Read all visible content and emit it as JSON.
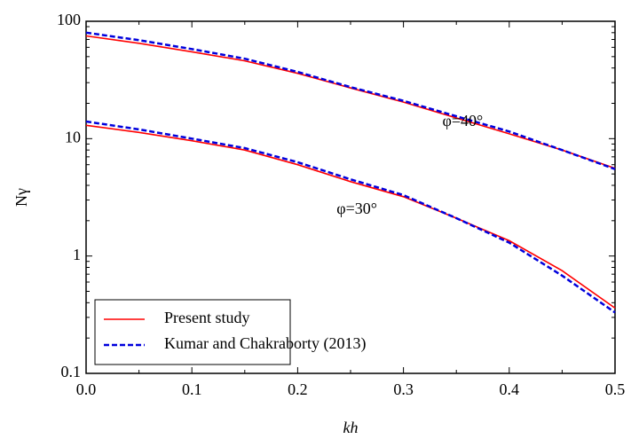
{
  "chart_data": {
    "type": "line",
    "xlabel": "kh",
    "ylabel": "Nγ",
    "x": [
      0,
      0.05,
      0.1,
      0.15,
      0.2,
      0.25,
      0.3,
      0.35,
      0.4,
      0.45,
      0.5
    ],
    "xlim": [
      0,
      0.5
    ],
    "xticks": [
      {
        "value": 0,
        "label": "0.0"
      },
      0.1,
      0.2,
      0.3,
      0.4,
      0.5
    ],
    "ylim": [
      0.1,
      100
    ],
    "yticks": [
      0.1,
      1,
      10,
      100
    ],
    "ylog": true,
    "annotations": [
      "φ=40°",
      "φ=30°"
    ],
    "series": [
      {
        "name": "Present study",
        "color": "#ff0000",
        "dashed": false,
        "lines": [
          [
            75,
            65,
            55,
            46,
            36,
            27,
            20.5,
            15,
            11,
            8,
            5.6
          ],
          [
            13,
            11.3,
            9.6,
            8,
            6,
            4.3,
            3.2,
            2.1,
            1.35,
            0.75,
            0.36
          ]
        ]
      },
      {
        "name": "Kumar and Chakraborty (2013)",
        "color": "#0000dd",
        "dashed": true,
        "lines": [
          [
            80,
            69,
            58,
            48,
            37,
            27.5,
            21,
            15.5,
            11.5,
            8,
            5.5
          ],
          [
            14,
            12,
            10,
            8.3,
            6.3,
            4.5,
            3.3,
            2.1,
            1.3,
            0.68,
            0.33
          ]
        ]
      }
    ],
    "legend": "lower left"
  }
}
